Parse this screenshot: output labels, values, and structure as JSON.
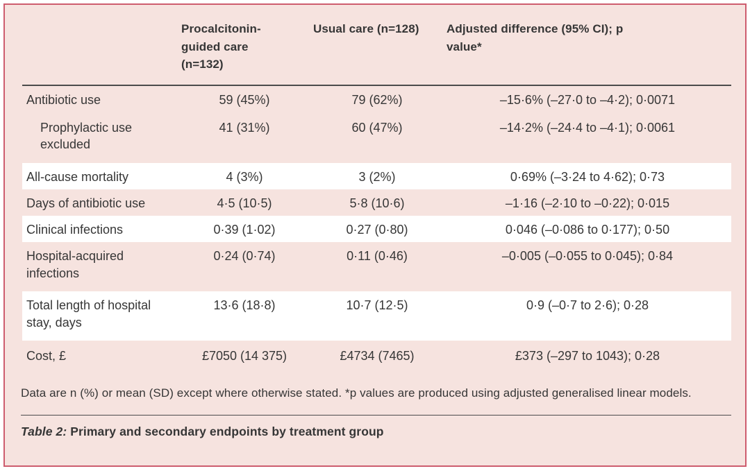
{
  "table": {
    "header": {
      "col2": "Procalcitonin-guided care (n=132)",
      "col3": "Usual care (n=128)",
      "col4": "Adjusted difference (95% CI); p value*"
    },
    "rows": [
      {
        "label": "Antibiotic use",
        "pcg": "59 (45%)",
        "usual": "79 (62%)",
        "diff": "–15·6% (–27·0 to –4·2); 0·0071"
      },
      {
        "label": "Prophylactic use excluded",
        "pcg": "41 (31%)",
        "usual": "60 (47%)",
        "diff": "–14·2% (–24·4 to –4·1); 0·0061"
      },
      {
        "label": "All-cause mortality",
        "pcg": "4 (3%)",
        "usual": "3 (2%)",
        "diff": "0·69% (–3·24 to 4·62); 0·73"
      },
      {
        "label": "Days of antibiotic use",
        "pcg": "4·5 (10·5)",
        "usual": "5·8 (10·6)",
        "diff": "–1·16 (–2·10 to –0·22); 0·015"
      },
      {
        "label": "Clinical infections",
        "pcg": "0·39 (1·02)",
        "usual": "0·27 (0·80)",
        "diff": "0·046 (–0·086 to 0·177); 0·50"
      },
      {
        "label": "Hospital-acquired infections",
        "pcg": "0·24 (0·74)",
        "usual": "0·11 (0·46)",
        "diff": "–0·005 (–0·055 to 0·045); 0·84"
      },
      {
        "label": "Total length of hospital stay, days",
        "pcg": "13·6 (18·8)",
        "usual": "10·7 (12·5)",
        "diff": "0·9 (–0·7 to 2·6); 0·28"
      },
      {
        "label": "Cost, £",
        "pcg": "£7050 (14 375)",
        "usual": "£4734 (7465)",
        "diff": "£373 (–297 to 1043); 0·28"
      }
    ],
    "footnote": "Data are n (%) or mean (SD) except where otherwise stated. *p values are produced using adjusted generalised linear models.",
    "caption_label": "Table 2:",
    "caption_text": " Primary and secondary endpoints by treatment group"
  },
  "colors": {
    "panel_background": "#f6e3df",
    "panel_border": "#cd5c6e",
    "row_band": "#ffffff",
    "text": "#363636",
    "rule": "#4b4b4b"
  }
}
